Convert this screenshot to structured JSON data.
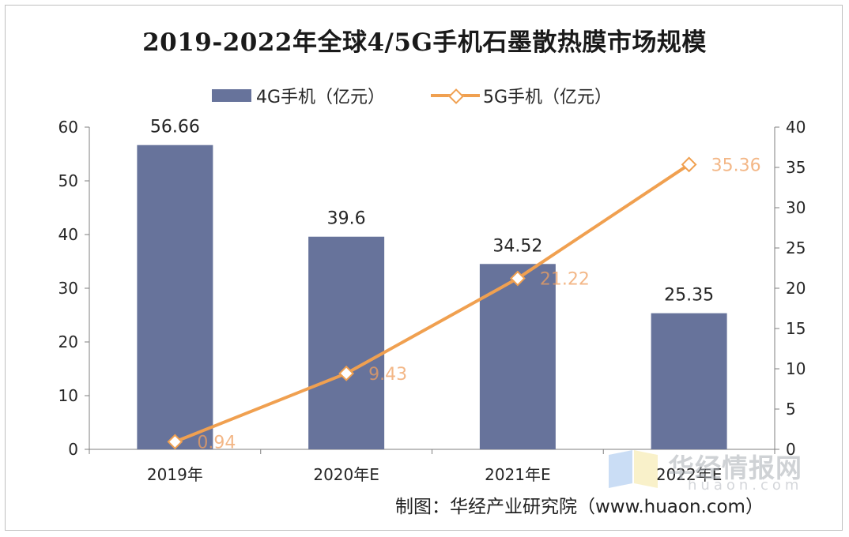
{
  "chart_data": {
    "type": "bar+line",
    "title": "2019-2022年全球4/5G手机石墨散热膜市场规模",
    "categories": [
      "2019年",
      "2020年E",
      "2021年E",
      "2022年E"
    ],
    "series": [
      {
        "name": "4G手机（亿元）",
        "type": "bar",
        "axis": "left",
        "values": [
          56.66,
          39.6,
          34.52,
          25.35
        ],
        "labels": [
          "56.66",
          "39.6",
          "34.52",
          "25.35"
        ]
      },
      {
        "name": "5G手机（亿元）",
        "type": "line",
        "axis": "right",
        "values": [
          0.94,
          9.43,
          21.22,
          35.36
        ],
        "labels": [
          "0.94",
          "9.43",
          "21.22",
          "35.36"
        ]
      }
    ],
    "y_left": {
      "min": 0,
      "max": 60,
      "ticks": [
        "0",
        "10",
        "20",
        "30",
        "40",
        "50",
        "60"
      ]
    },
    "y_right": {
      "min": 0,
      "max": 40,
      "ticks": [
        "0",
        "5",
        "10",
        "15",
        "20",
        "25",
        "30",
        "35",
        "40"
      ]
    },
    "grid": false,
    "legend_placement": "top-center",
    "colors": {
      "bar": "#67739b",
      "line": "#f0a050"
    }
  },
  "footer": {
    "credit": "制图：华经产业研究院（www.huaon.com）"
  },
  "watermark": {
    "text": "华经情报网",
    "sub": "huaon.com"
  }
}
